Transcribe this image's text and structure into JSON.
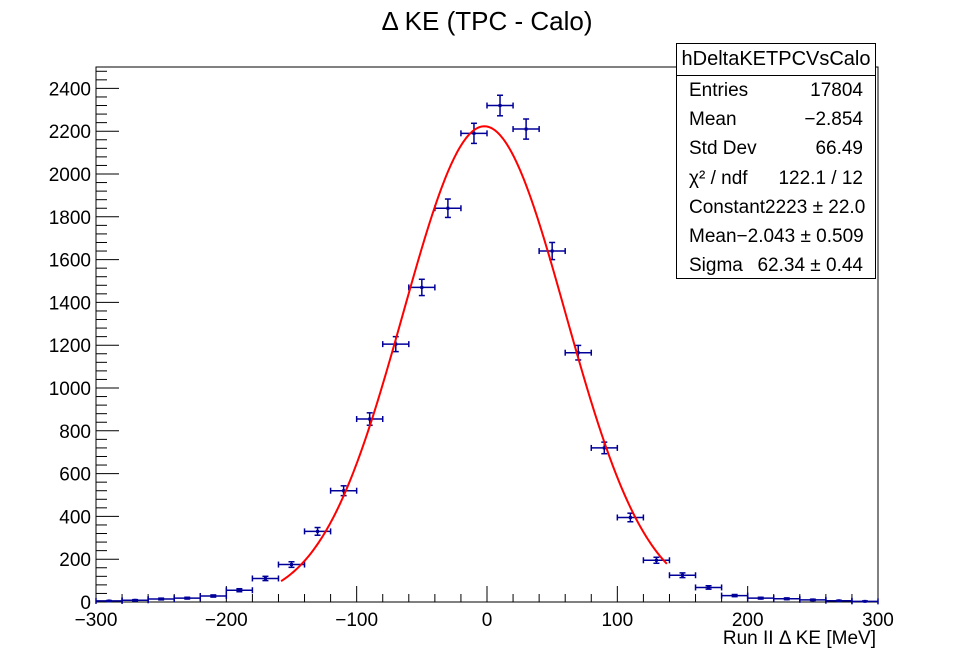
{
  "chart_data": {
    "type": "scatter",
    "title": "Δ KE (TPC - Calo)",
    "xlabel": "Run II Δ KE [MeV]",
    "ylabel": "",
    "xlim": [
      -300,
      300
    ],
    "ylim": [
      0,
      2500
    ],
    "x_ticks": [
      -300,
      -200,
      -100,
      0,
      100,
      200,
      300
    ],
    "x_tick_labels": [
      "−300",
      "−200",
      "−100",
      "0",
      "100",
      "200",
      "300"
    ],
    "y_ticks": [
      0,
      200,
      400,
      600,
      800,
      1000,
      1200,
      1400,
      1600,
      1800,
      2000,
      2200,
      2400
    ],
    "bin_width": 20,
    "histogram": {
      "x": [
        -290,
        -270,
        -250,
        -230,
        -210,
        -190,
        -170,
        -150,
        -130,
        -110,
        -90,
        -70,
        -50,
        -30,
        -10,
        10,
        30,
        50,
        70,
        90,
        110,
        130,
        150,
        170,
        190,
        210,
        230,
        250,
        270,
        290
      ],
      "values": [
        5,
        8,
        14,
        18,
        28,
        55,
        110,
        175,
        330,
        520,
        855,
        1205,
        1470,
        1840,
        2190,
        2320,
        2210,
        1640,
        1165,
        720,
        395,
        195,
        125,
        68,
        30,
        18,
        15,
        10,
        6,
        3
      ],
      "errors": [
        2,
        3,
        4,
        4,
        5,
        7,
        10,
        13,
        18,
        23,
        29,
        35,
        38,
        43,
        47,
        48,
        47,
        40,
        34,
        27,
        20,
        14,
        11,
        8,
        5,
        4,
        4,
        3,
        2,
        2
      ]
    },
    "fit": {
      "function": "gaus",
      "constant": 2223,
      "mean": -2.043,
      "sigma": 62.34,
      "x_range": [
        -158,
        138
      ]
    },
    "colors": {
      "points": "#000099",
      "fit": "#ff0000"
    }
  },
  "stats_box": {
    "name": "hDeltaKETPCVsCalo",
    "rows": [
      {
        "label": "Entries",
        "value": "17804"
      },
      {
        "label": "Mean",
        "value": "−2.854"
      },
      {
        "label": "Std Dev",
        "value": "66.49"
      },
      {
        "label": "χ² / ndf",
        "value": "122.1 / 12"
      },
      {
        "label": "Constant",
        "value": "2223 ± 22.0"
      },
      {
        "label": "Mean",
        "value": "−2.043 ± 0.509"
      },
      {
        "label": "Sigma",
        "value": "62.34 ± 0.44"
      }
    ]
  }
}
